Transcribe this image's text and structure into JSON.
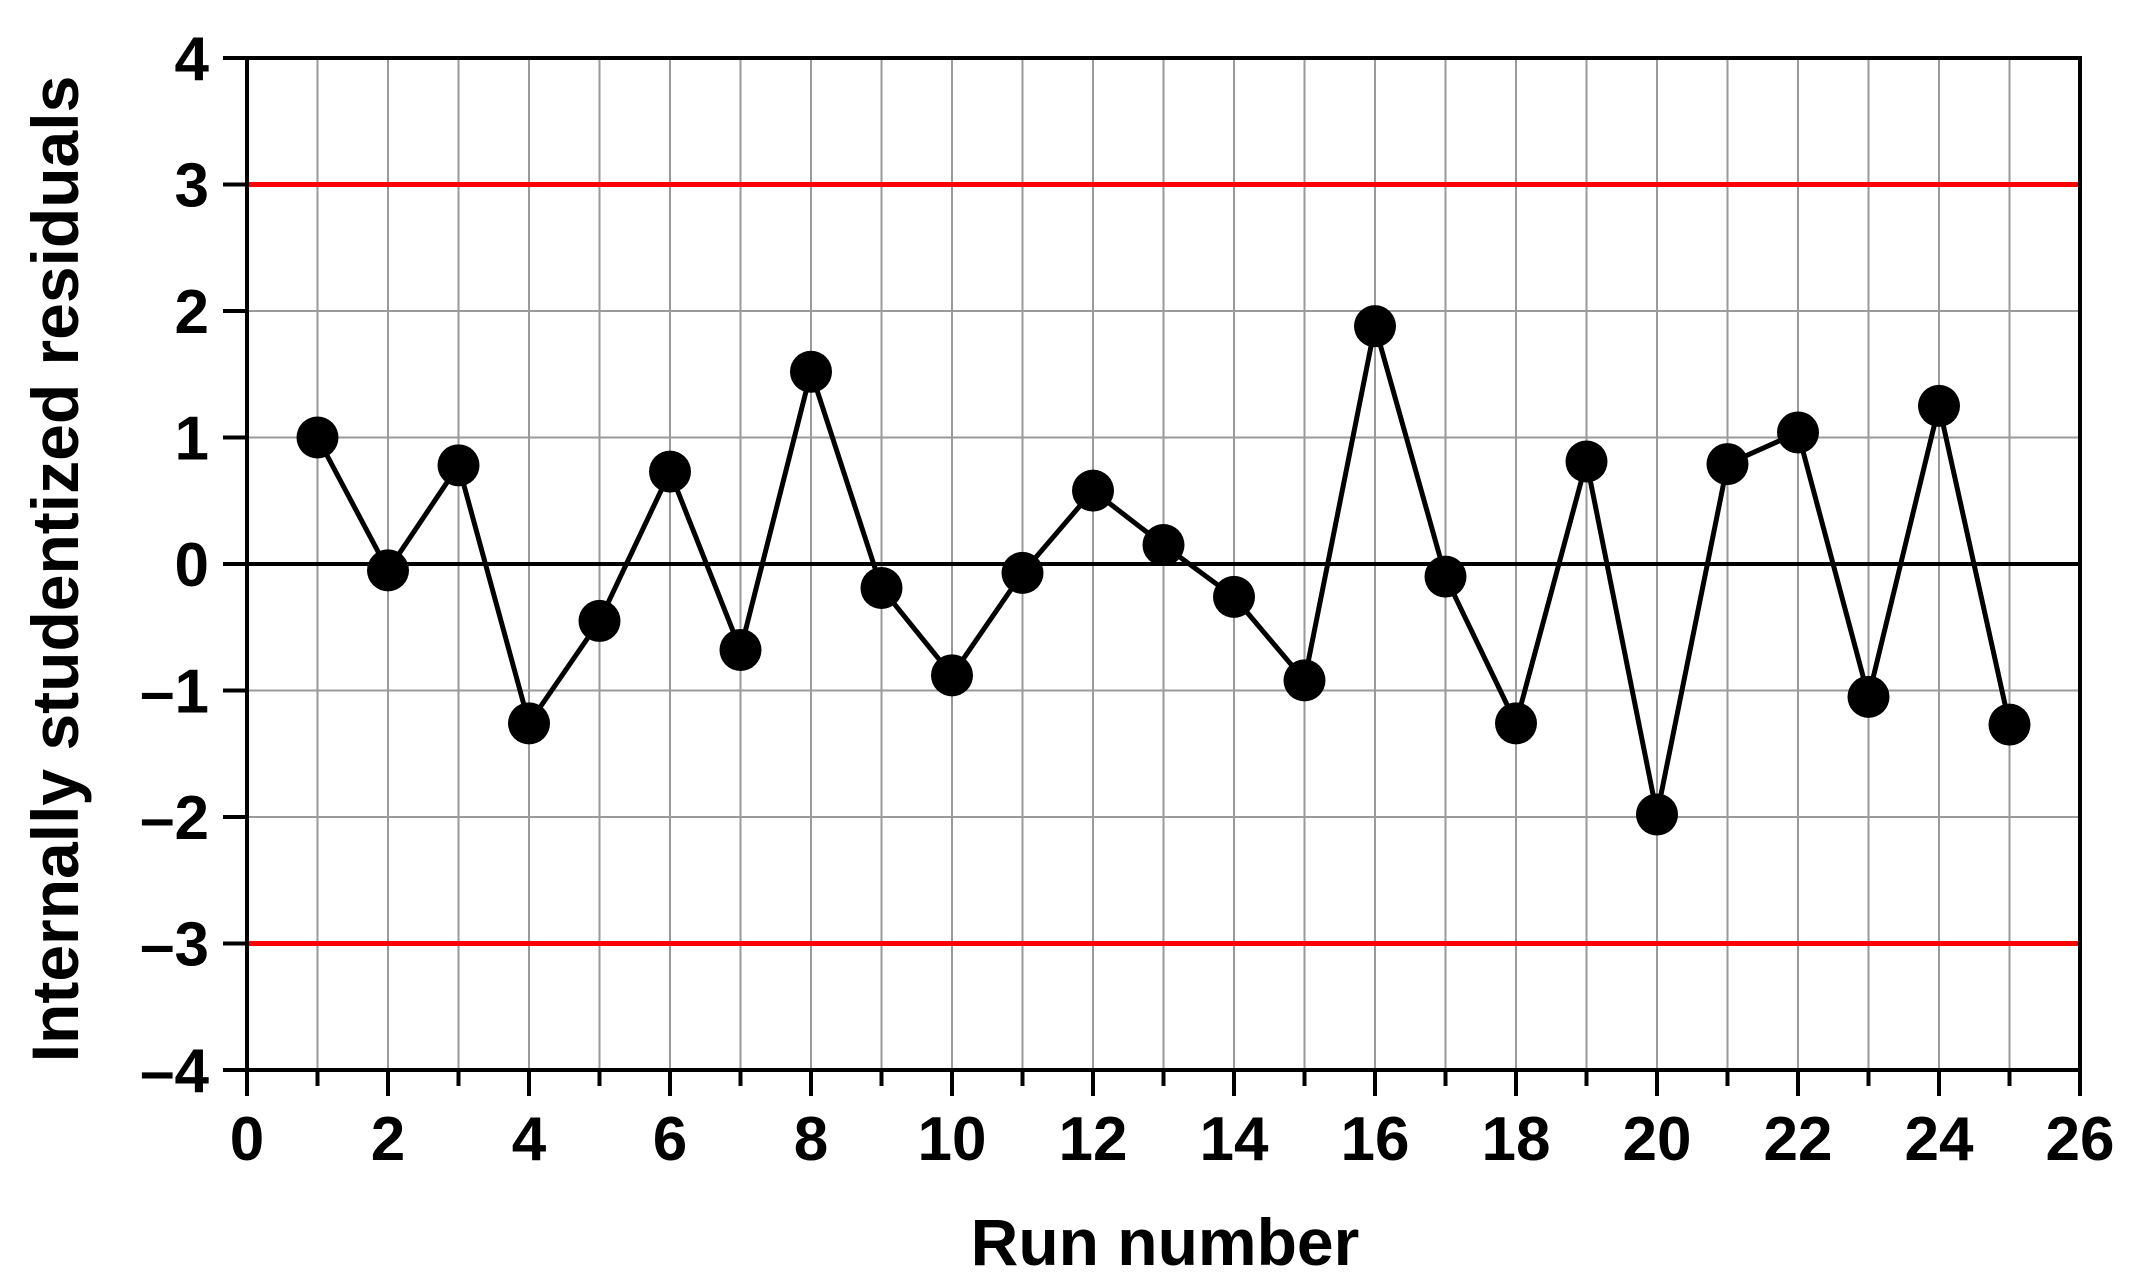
{
  "chart_data": {
    "type": "line",
    "title": "",
    "xlabel": "Run number",
    "ylabel": "Internally studentized residuals",
    "xlim": [
      0,
      26
    ],
    "ylim": [
      -4,
      4
    ],
    "x_ticks": [
      0,
      2,
      4,
      6,
      8,
      10,
      12,
      14,
      16,
      18,
      20,
      22,
      24,
      26
    ],
    "y_ticks": [
      -4,
      -3,
      -2,
      -1,
      0,
      1,
      2,
      3,
      4
    ],
    "y_tick_labels": [
      "–4",
      "–3",
      "–2",
      "–1",
      "0",
      "1",
      "2",
      "3",
      "4"
    ],
    "grid": true,
    "reference_lines": [
      {
        "y": 3,
        "color": "#ff0000"
      },
      {
        "y": 0,
        "color": "#000000"
      },
      {
        "y": -3,
        "color": "#ff0000"
      }
    ],
    "series": [
      {
        "color": "#000000",
        "marker": "filled-circle",
        "x": [
          1,
          2,
          3,
          4,
          5,
          6,
          7,
          8,
          9,
          10,
          11,
          12,
          13,
          14,
          15,
          16,
          17,
          18,
          19,
          20,
          21,
          22,
          23,
          24,
          25
        ],
        "y": [
          1.0,
          -0.05,
          0.78,
          -1.26,
          -0.45,
          0.73,
          -0.68,
          1.52,
          -0.19,
          -0.88,
          -0.07,
          0.58,
          0.15,
          -0.26,
          -0.92,
          1.88,
          -0.1,
          -1.26,
          0.81,
          -1.98,
          0.79,
          1.04,
          -1.05,
          1.25,
          -1.27
        ]
      }
    ]
  }
}
